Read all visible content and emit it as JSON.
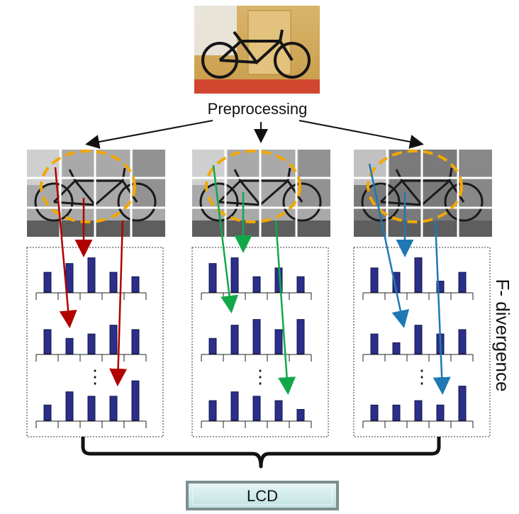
{
  "title": "Preprocessing",
  "side_label": "F- divergence",
  "output_label": "LCD",
  "ellipsis": "⋮",
  "colors": {
    "bar_fill": "#2b2f8a",
    "bar_stroke": "#12144a",
    "ellipse": "#f2a800",
    "arrows": [
      "#b00000",
      "#11a84a",
      "#1f78b4"
    ],
    "lcd_fill": "#cfeaea",
    "lcd_stroke": "#7d8f8f"
  },
  "panels": [
    {
      "name": "panel-1",
      "image_tone": "light",
      "histograms": [
        [
          0.45,
          0.65,
          0.78,
          0.45,
          0.35
        ],
        [
          0.55,
          0.35,
          0.45,
          0.65,
          0.55
        ],
        [
          0.35,
          0.65,
          0.55,
          0.55,
          0.9
        ]
      ]
    },
    {
      "name": "panel-2",
      "image_tone": "light",
      "histograms": [
        [
          0.65,
          0.78,
          0.35,
          0.55,
          0.35
        ],
        [
          0.35,
          0.65,
          0.78,
          0.55,
          0.78
        ],
        [
          0.45,
          0.65,
          0.55,
          0.45,
          0.25
        ]
      ]
    },
    {
      "name": "panel-3",
      "image_tone": "dark",
      "histograms": [
        [
          0.55,
          0.45,
          0.78,
          0.25,
          0.45
        ],
        [
          0.45,
          0.25,
          0.65,
          0.45,
          0.55
        ],
        [
          0.35,
          0.35,
          0.45,
          0.35,
          0.78
        ]
      ]
    }
  ]
}
